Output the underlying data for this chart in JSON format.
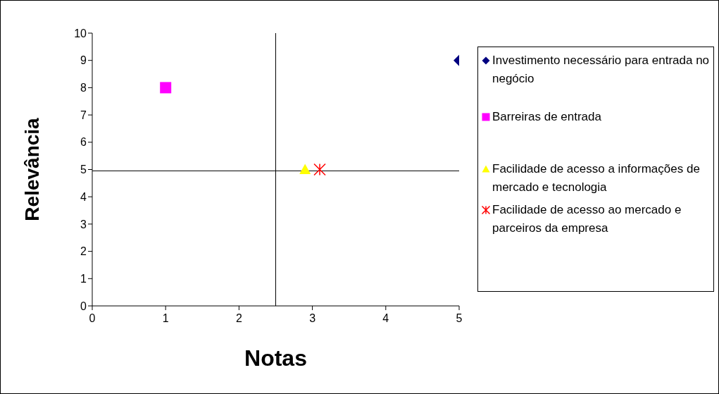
{
  "chart_data": {
    "type": "scatter",
    "xlabel": "Notas",
    "ylabel": "Relevância",
    "xlim": [
      0,
      5
    ],
    "xticks": [
      0,
      1,
      2,
      3,
      4,
      5
    ],
    "ylim": [
      0,
      10
    ],
    "yticks": [
      0,
      1,
      2,
      3,
      4,
      5,
      6,
      7,
      8,
      9,
      10
    ],
    "grid": false,
    "legend": "right",
    "ref_lines": [
      {
        "axis": "x",
        "value": 2.5,
        "color": "#000000"
      },
      {
        "axis": "y",
        "value": 4.95,
        "color": "#000000"
      }
    ],
    "series": [
      {
        "name": "Investimento necessário para entrada no negócio",
        "color": "#000080",
        "marker": "diamond",
        "x": [
          5
        ],
        "values": [
          9
        ]
      },
      {
        "name": "Barreiras de entrada",
        "color": "#ff00ff",
        "marker": "square",
        "x": [
          1
        ],
        "values": [
          8
        ]
      },
      {
        "name": "Facilidade de acesso a informações de mercado e tecnologia",
        "color": "#ffff00",
        "marker": "triangle",
        "x": [
          2.9
        ],
        "values": [
          5
        ]
      },
      {
        "name": "Facilidade de acesso ao mercado e parceiros da empresa",
        "color": "#ff0000",
        "marker": "cross",
        "x": [
          3.1
        ],
        "values": [
          5
        ]
      }
    ]
  }
}
